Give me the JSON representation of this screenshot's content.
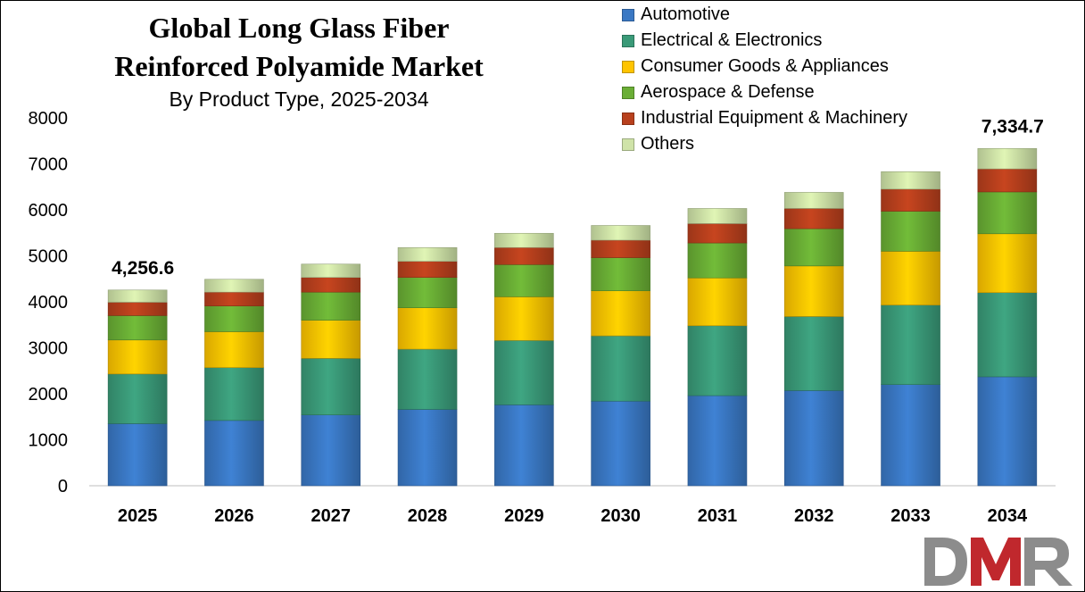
{
  "chart_data": {
    "type": "bar",
    "stacked": true,
    "title_line1": "Global Long Glass Fiber",
    "title_line2": "Reinforced Polyamide Market",
    "subtitle": "By Product Type, 2025-2034",
    "categories": [
      "2025",
      "2026",
      "2027",
      "2028",
      "2029",
      "2030",
      "2031",
      "2032",
      "2033",
      "2034"
    ],
    "ylim": [
      0,
      8000
    ],
    "yticks": [
      0,
      1000,
      2000,
      3000,
      4000,
      5000,
      6000,
      7000,
      8000
    ],
    "grid": false,
    "legend_position": "top-right",
    "series": [
      {
        "name": "Automotive",
        "color": "#3a78c4",
        "values": [
          1350,
          1420,
          1540,
          1660,
          1760,
          1840,
          1960,
          2070,
          2200,
          2370
        ]
      },
      {
        "name": "Electrical & Electronics",
        "color": "#3a9a78",
        "values": [
          1080,
          1150,
          1230,
          1310,
          1400,
          1420,
          1520,
          1610,
          1730,
          1830
        ]
      },
      {
        "name": "Consumer Goods & Appliances",
        "color": "#ffc400",
        "values": [
          740,
          780,
          830,
          900,
          950,
          980,
          1040,
          1100,
          1170,
          1280
        ]
      },
      {
        "name": "Aerospace & Defense",
        "color": "#6aae35",
        "values": [
          530,
          560,
          610,
          660,
          700,
          720,
          760,
          810,
          870,
          910
        ]
      },
      {
        "name": "Industrial Equipment & Machinery",
        "color": "#b8401d",
        "values": [
          290,
          300,
          320,
          350,
          370,
          380,
          420,
          440,
          480,
          500
        ]
      },
      {
        "name": "Others",
        "color": "#cfe3a8",
        "values": [
          266.6,
          280,
          290,
          300,
          310,
          320,
          330,
          350,
          380,
          444.7
        ]
      }
    ],
    "annotations": [
      {
        "category": "2025",
        "text": "4,256.6"
      },
      {
        "category": "2034",
        "text": "7,334.7"
      }
    ]
  },
  "logo": {
    "text": "DMR",
    "colors": [
      "#8c8c8c",
      "#c0282d",
      "#8c8c8c"
    ]
  }
}
